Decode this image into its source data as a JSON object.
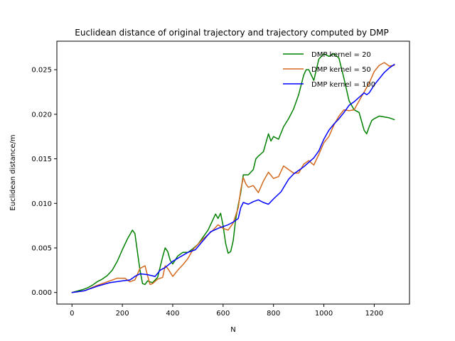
{
  "chart_data": {
    "type": "line",
    "title": "Euclidean distance of original trajectory and trajectory computed by DMP",
    "xlabel": "N",
    "ylabel": "Euclidean distance/m",
    "xlim": [
      -60,
      1340
    ],
    "ylim": [
      -0.0013,
      0.0282
    ],
    "xticks": [
      0,
      200,
      400,
      600,
      800,
      1000,
      1200
    ],
    "xtick_labels": [
      "0",
      "200",
      "400",
      "600",
      "800",
      "1000",
      "1200"
    ],
    "yticks": [
      0.0,
      0.005,
      0.01,
      0.015,
      0.02,
      0.025
    ],
    "ytick_labels": [
      "0.000",
      "0.005",
      "0.010",
      "0.015",
      "0.020",
      "0.025"
    ],
    "grid": false,
    "legend_position": "top-right",
    "series": [
      {
        "name": "DMP kernel = 20",
        "color": "#008000",
        "x": [
          0,
          40,
          60,
          80,
          100,
          120,
          140,
          160,
          180,
          200,
          220,
          240,
          250,
          260,
          270,
          280,
          290,
          300,
          320,
          340,
          360,
          370,
          380,
          390,
          400,
          420,
          440,
          460,
          480,
          500,
          520,
          540,
          560,
          570,
          580,
          590,
          600,
          610,
          620,
          630,
          640,
          650,
          660,
          670,
          680,
          700,
          720,
          730,
          740,
          760,
          780,
          790,
          800,
          820,
          840,
          860,
          880,
          900,
          920,
          930,
          940,
          960,
          980,
          1000,
          1020,
          1040,
          1060,
          1080,
          1100,
          1120,
          1140,
          1160,
          1170,
          1180,
          1190,
          1200,
          1220,
          1240,
          1260,
          1280
        ],
        "values": [
          0.0,
          0.0003,
          0.0005,
          0.0008,
          0.0012,
          0.0015,
          0.0019,
          0.0025,
          0.0035,
          0.0048,
          0.006,
          0.007,
          0.0066,
          0.0045,
          0.0025,
          0.001,
          0.0009,
          0.0013,
          0.0011,
          0.0017,
          0.004,
          0.005,
          0.0046,
          0.0036,
          0.0032,
          0.0041,
          0.0045,
          0.0045,
          0.0049,
          0.0054,
          0.0062,
          0.007,
          0.0082,
          0.0088,
          0.0083,
          0.0089,
          0.0075,
          0.0055,
          0.0044,
          0.0046,
          0.0058,
          0.0082,
          0.0098,
          0.0112,
          0.0132,
          0.0132,
          0.0138,
          0.015,
          0.0153,
          0.0158,
          0.0178,
          0.017,
          0.0175,
          0.0172,
          0.0186,
          0.0195,
          0.0206,
          0.0222,
          0.0244,
          0.025,
          0.025,
          0.0238,
          0.0262,
          0.0268,
          0.0265,
          0.0268,
          0.0263,
          0.024,
          0.0215,
          0.0205,
          0.0202,
          0.0182,
          0.0178,
          0.0186,
          0.0193,
          0.0195,
          0.0198,
          0.0197,
          0.0196,
          0.0194
        ]
      },
      {
        "name": "DMP kernel = 50",
        "color": "#d2691e",
        "x": [
          0,
          50,
          100,
          150,
          180,
          210,
          230,
          250,
          270,
          290,
          300,
          310,
          320,
          340,
          360,
          370,
          380,
          400,
          420,
          440,
          460,
          480,
          500,
          520,
          540,
          560,
          580,
          600,
          620,
          640,
          660,
          670,
          680,
          690,
          700,
          720,
          740,
          760,
          780,
          800,
          820,
          840,
          860,
          880,
          900,
          920,
          940,
          960,
          980,
          1000,
          1020,
          1040,
          1060,
          1080,
          1100,
          1120,
          1140,
          1160,
          1180,
          1200,
          1220,
          1240,
          1260,
          1280
        ],
        "values": [
          0.0,
          0.0002,
          0.0008,
          0.0013,
          0.0016,
          0.0016,
          0.0012,
          0.0014,
          0.0027,
          0.003,
          0.0019,
          0.0009,
          0.001,
          0.0015,
          0.0017,
          0.003,
          0.0027,
          0.0018,
          0.0025,
          0.0031,
          0.0038,
          0.0048,
          0.0054,
          0.006,
          0.0065,
          0.007,
          0.0076,
          0.0072,
          0.007,
          0.0078,
          0.0095,
          0.0115,
          0.0129,
          0.0122,
          0.0118,
          0.012,
          0.0112,
          0.0125,
          0.0135,
          0.0128,
          0.013,
          0.0142,
          0.0138,
          0.0134,
          0.0134,
          0.0144,
          0.0148,
          0.0143,
          0.0155,
          0.0168,
          0.0175,
          0.0188,
          0.0198,
          0.0205,
          0.0204,
          0.0205,
          0.0215,
          0.0225,
          0.0235,
          0.0248,
          0.0255,
          0.0258,
          0.0254,
          0.0255
        ]
      },
      {
        "name": "DMP kernel = 100",
        "color": "#0000ff",
        "x": [
          0,
          50,
          100,
          150,
          200,
          230,
          250,
          270,
          300,
          330,
          350,
          370,
          400,
          430,
          460,
          490,
          520,
          550,
          580,
          600,
          620,
          640,
          660,
          670,
          680,
          700,
          720,
          740,
          760,
          780,
          800,
          830,
          860,
          880,
          900,
          920,
          940,
          960,
          980,
          1000,
          1020,
          1040,
          1060,
          1080,
          1100,
          1120,
          1140,
          1160,
          1170,
          1180,
          1200,
          1220,
          1240,
          1260,
          1280
        ],
        "values": [
          0.0,
          0.0002,
          0.0007,
          0.0011,
          0.0013,
          0.0014,
          0.0018,
          0.0021,
          0.002,
          0.0018,
          0.0025,
          0.0028,
          0.0035,
          0.004,
          0.0045,
          0.0048,
          0.0058,
          0.0068,
          0.0072,
          0.0074,
          0.0076,
          0.0079,
          0.0083,
          0.0095,
          0.0101,
          0.0099,
          0.0102,
          0.0104,
          0.0101,
          0.0099,
          0.0105,
          0.0113,
          0.0127,
          0.0133,
          0.0137,
          0.0141,
          0.0146,
          0.0151,
          0.0159,
          0.0172,
          0.0182,
          0.0189,
          0.0195,
          0.0202,
          0.021,
          0.0214,
          0.0219,
          0.0224,
          0.0222,
          0.0224,
          0.0233,
          0.024,
          0.0247,
          0.0252,
          0.0256
        ]
      }
    ]
  }
}
